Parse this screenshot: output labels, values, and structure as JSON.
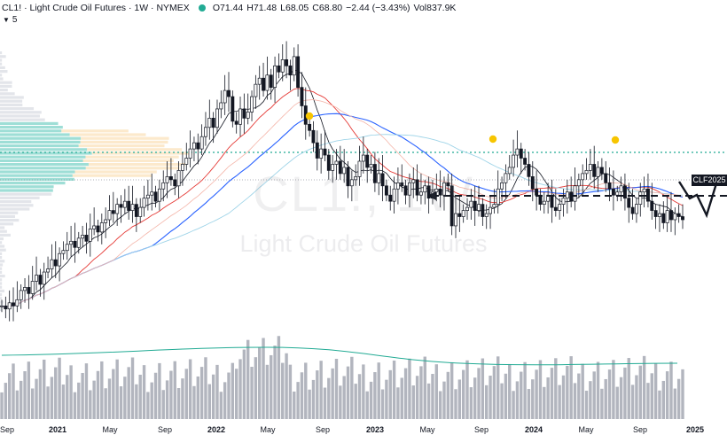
{
  "header": {
    "symbol": "CL1! · Light Crude Oil Futures · 1W · NYMEX",
    "open_label": "O",
    "open": "71.44",
    "high_label": "H",
    "high": "71.48",
    "low_label": "L",
    "low": "68.05",
    "close_label": "C",
    "close": "68.80",
    "change": "−2.44 (−3.43%)",
    "vol_label": "Vol",
    "vol": "837.9K",
    "status_color": "#22ab94"
  },
  "indicator_count": "5",
  "watermark": {
    "ticker": "CL1!, 1W",
    "name": "Light Crude Oil Futures"
  },
  "price_tag": "CLF2025",
  "colors": {
    "up": "#131722",
    "down": "#131722",
    "volume": "#b2b5be",
    "ma_fast": "#131722",
    "ma_red": "#e53935",
    "ma_blue": "#2962ff",
    "ma_green": "#22ab94",
    "marker": "#f7c500",
    "vp_teal": "#4fc3b4",
    "vp_orange": "#fbe0b6",
    "vp_gray": "#d1d4dc"
  },
  "chart_data": {
    "type": "candlestick",
    "timeframe": "1W",
    "x_tick_labels": [
      "Sep",
      "2021",
      "May",
      "Sep",
      "2022",
      "May",
      "Sep",
      "2023",
      "May",
      "Sep",
      "2024",
      "May",
      "Sep",
      "2025"
    ],
    "price_range": [
      60,
      125
    ],
    "closes": [
      40,
      39,
      41,
      40,
      42,
      45,
      46,
      44,
      48,
      50,
      47,
      51,
      52,
      55,
      53,
      57,
      58,
      60,
      61,
      59,
      62,
      63,
      61,
      65,
      66,
      64,
      67,
      68,
      71,
      70,
      73,
      72,
      74,
      71,
      73,
      69,
      72,
      75,
      76,
      77,
      74,
      78,
      80,
      82,
      81,
      79,
      84,
      86,
      88,
      91,
      93,
      91,
      95,
      98,
      101,
      98,
      104,
      106,
      110,
      108,
      100,
      99,
      104,
      101,
      103,
      108,
      112,
      114,
      110,
      115,
      111,
      118,
      116,
      120,
      118,
      115,
      121,
      111,
      105,
      99,
      97,
      93,
      88,
      91,
      89,
      84,
      86,
      87,
      83,
      85,
      79,
      81,
      82,
      87,
      89,
      85,
      86,
      80,
      83,
      79,
      76,
      74,
      78,
      80,
      79,
      76,
      80,
      81,
      76,
      77,
      79,
      75,
      77,
      78,
      76,
      80,
      79,
      66,
      70,
      69,
      71,
      72,
      74,
      71,
      73,
      69,
      70,
      72,
      73,
      78,
      80,
      83,
      85,
      89,
      91,
      88,
      86,
      82,
      78,
      76,
      73,
      74,
      76,
      72,
      71,
      73,
      75,
      77,
      74,
      79,
      81,
      83,
      84,
      86,
      82,
      85,
      83,
      80,
      78,
      76,
      77,
      79,
      75,
      72,
      70,
      73,
      77,
      78,
      74,
      71,
      69,
      70,
      67,
      71,
      68,
      70,
      69,
      68
    ],
    "volume_range": [
      0,
      1200
    ],
    "last_volume": 837.9,
    "markers": [
      "2022-08",
      "2023-09",
      "2024-06"
    ],
    "projection": "dashed arrow toward 2025 with V-shaped path"
  }
}
